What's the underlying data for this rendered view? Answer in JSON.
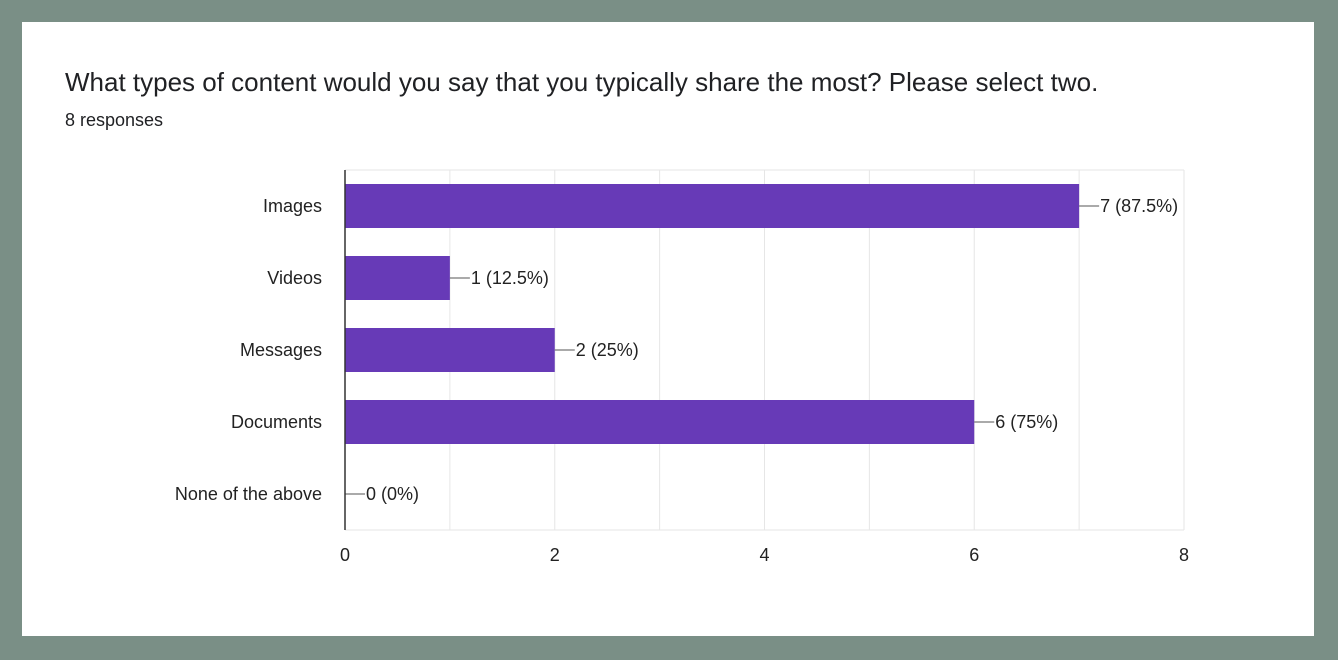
{
  "question": {
    "title": "What types of content would you say that you typically share the most? Please select two.",
    "responses": "8 responses"
  },
  "colors": {
    "background": "#7a8f86",
    "card": "#ffffff",
    "bar": "#673ab7",
    "grid": "#e6e6e6",
    "axis": "#333333",
    "leader": "#555555"
  },
  "chart_data": {
    "type": "bar",
    "orientation": "horizontal",
    "categories": [
      "Images",
      "Videos",
      "Messages",
      "Documents",
      "None of the above"
    ],
    "values": [
      7,
      1,
      2,
      6,
      0
    ],
    "data_labels": [
      "7 (87.5%)",
      "1 (12.5%)",
      "2 (25%)",
      "6 (75%)",
      "0 (0%)"
    ],
    "xlim": [
      0,
      8
    ],
    "x_ticks": [
      0,
      2,
      4,
      6,
      8
    ],
    "x_tick_labels": [
      "0",
      "2",
      "4",
      "6",
      "8"
    ],
    "grid": true,
    "legend": "none"
  }
}
